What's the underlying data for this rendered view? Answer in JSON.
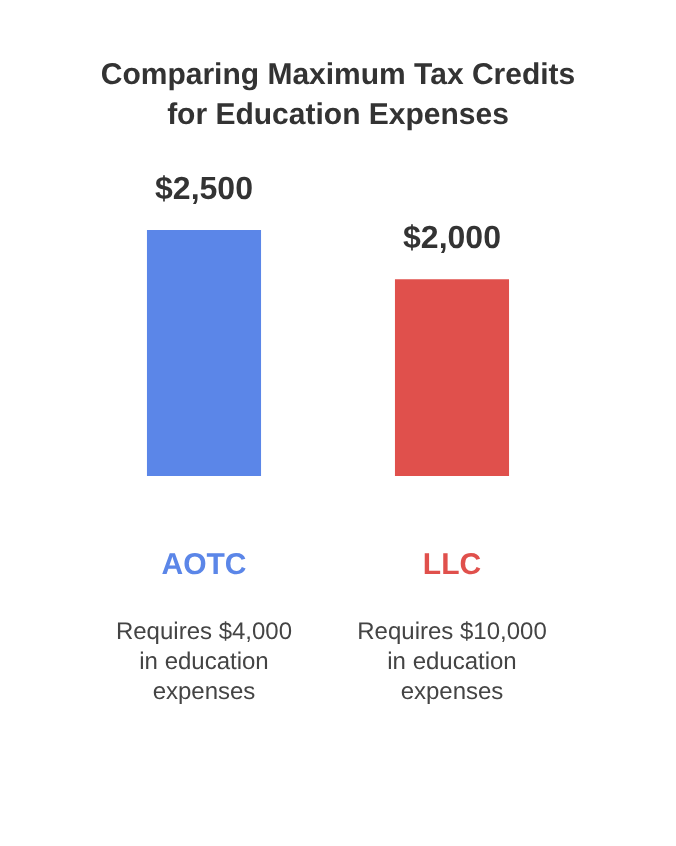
{
  "chart_data": {
    "type": "bar",
    "title": "Comparing Maximum Tax Credits for Education Expenses",
    "categories": [
      "AOTC",
      "LLC"
    ],
    "values": [
      2500,
      2000
    ],
    "colors": [
      "#5b86e8",
      "#e0504c"
    ],
    "value_labels": [
      "$2,500",
      "$2,000"
    ],
    "annotations": [
      "Requires $4,000 in education expenses",
      "Requires $10,000 in education expenses"
    ],
    "grid": false,
    "legend": false,
    "tick_labels": "x"
  }
}
